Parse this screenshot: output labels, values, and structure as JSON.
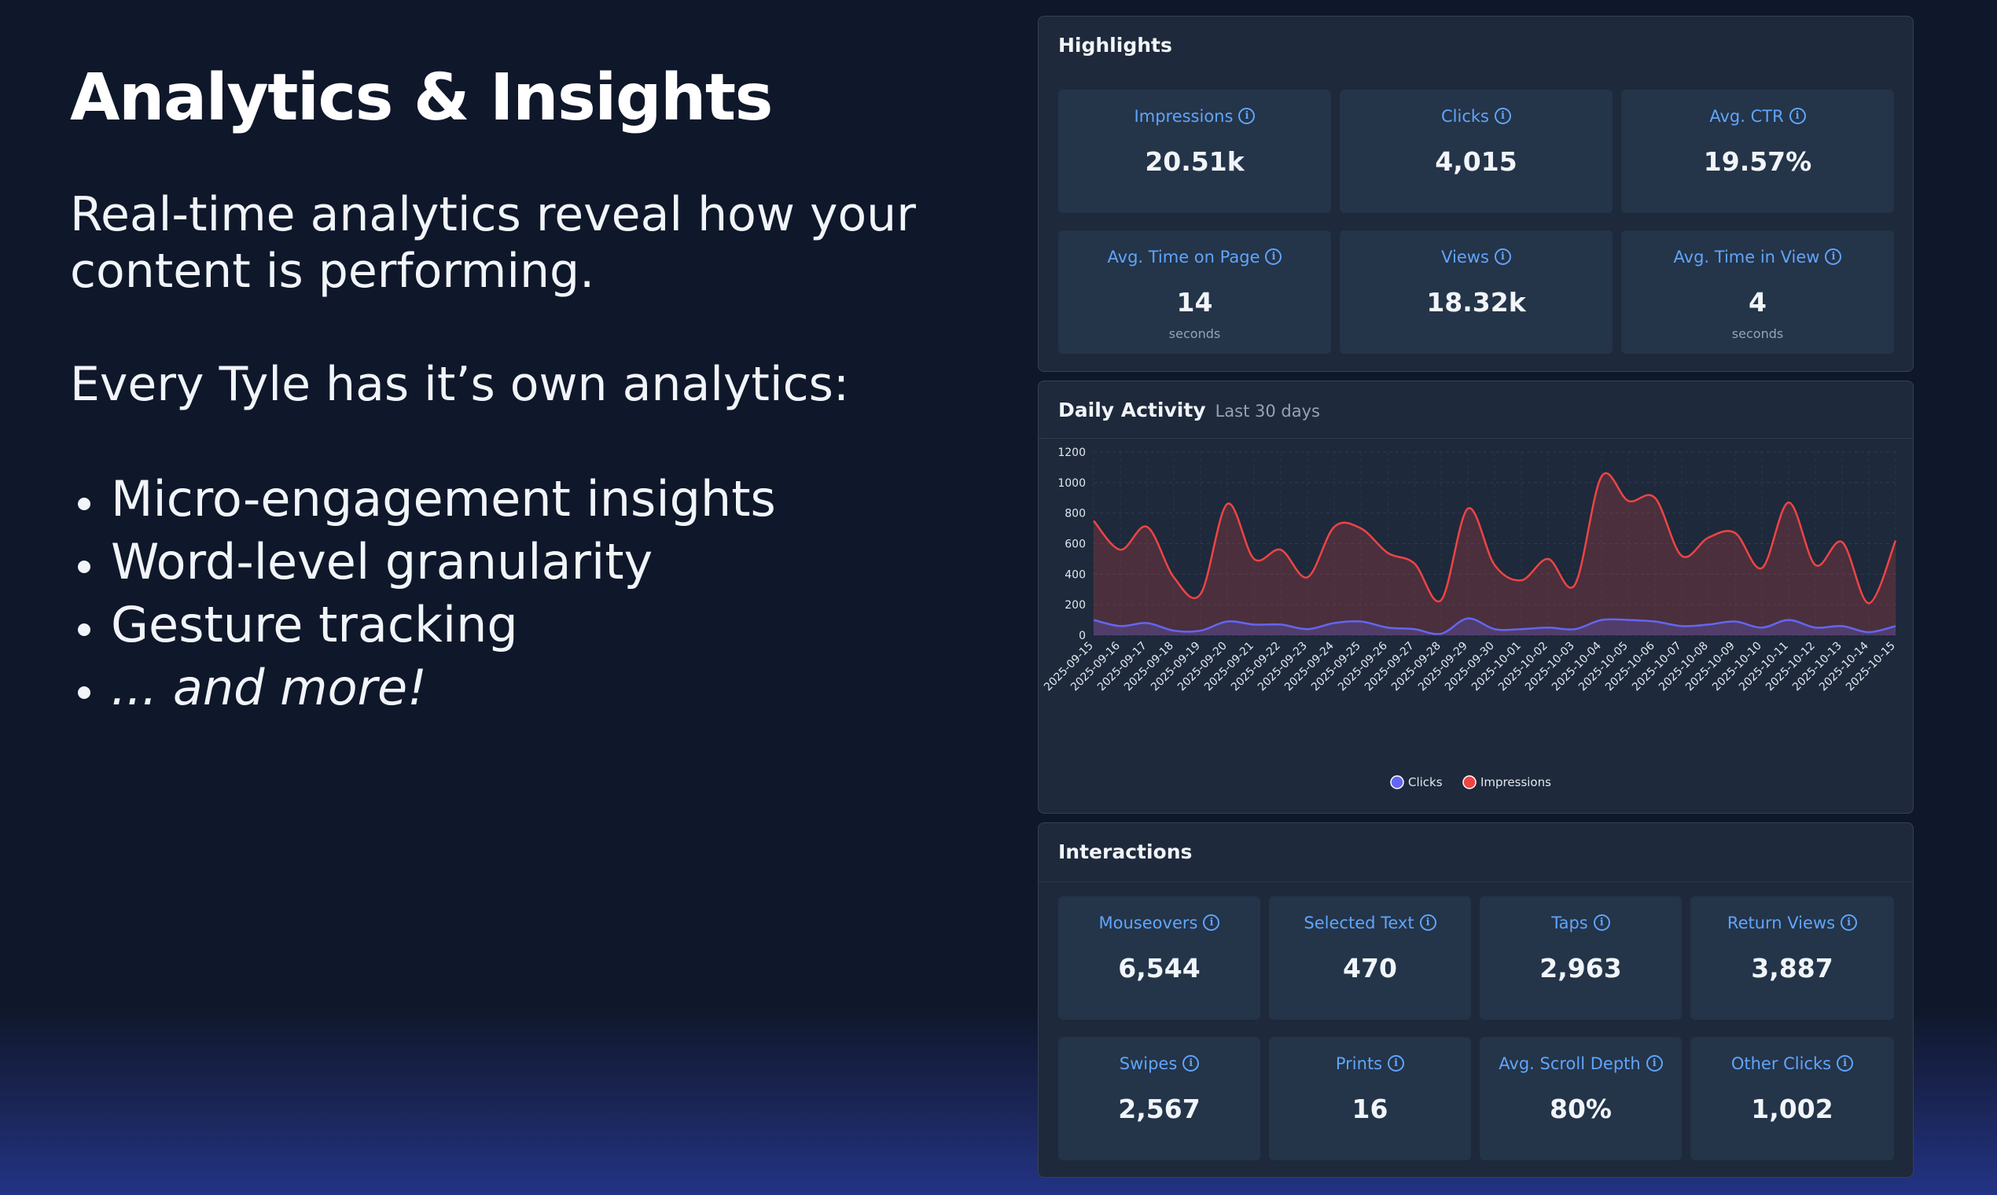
{
  "hero": {
    "title": "Analytics & Insights",
    "lead": "Real-time analytics reveal how your content is performing.",
    "lead2": "Every Tyle has it’s own analytics:",
    "bullets": [
      "Micro-engagement insights",
      "Word-level granularity",
      "Gesture tracking",
      "... and more!"
    ]
  },
  "highlights": {
    "title": "Highlights",
    "cards": [
      {
        "label": "Impressions",
        "value": "20.51k",
        "unit": ""
      },
      {
        "label": "Clicks",
        "value": "4,015",
        "unit": ""
      },
      {
        "label": "Avg. CTR",
        "value": "19.57%",
        "unit": ""
      },
      {
        "label": "Avg. Time on Page",
        "value": "14",
        "unit": "seconds"
      },
      {
        "label": "Views",
        "value": "18.32k",
        "unit": ""
      },
      {
        "label": "Avg. Time in View",
        "value": "4",
        "unit": "seconds"
      }
    ]
  },
  "daily": {
    "title": "Daily Activity",
    "subtitle": "Last 30 days"
  },
  "interactions": {
    "title": "Interactions",
    "cards": [
      {
        "label": "Mouseovers",
        "value": "6,544"
      },
      {
        "label": "Selected Text",
        "value": "470"
      },
      {
        "label": "Taps",
        "value": "2,963"
      },
      {
        "label": "Return Views",
        "value": "3,887"
      },
      {
        "label": "Swipes",
        "value": "2,567"
      },
      {
        "label": "Prints",
        "value": "16"
      },
      {
        "label": "Avg. Scroll Depth",
        "value": "80%"
      },
      {
        "label": "Other Clicks",
        "value": "1,002"
      }
    ]
  },
  "colors": {
    "impressions": "#ef4444",
    "clicks": "#6366f1",
    "label_blue": "#60a5fa"
  },
  "chart_data": {
    "type": "area",
    "title": "",
    "xlabel": "",
    "ylabel": "",
    "ylim": [
      0,
      1200
    ],
    "yticks": [
      0,
      200,
      400,
      600,
      800,
      1000,
      1200
    ],
    "grid": true,
    "legend": "bottom",
    "x": [
      "2025-09-15",
      "2025-09-16",
      "2025-09-17",
      "2025-09-18",
      "2025-09-19",
      "2025-09-20",
      "2025-09-21",
      "2025-09-22",
      "2025-09-23",
      "2025-09-24",
      "2025-09-25",
      "2025-09-26",
      "2025-09-27",
      "2025-09-28",
      "2025-09-29",
      "2025-09-30",
      "2025-10-01",
      "2025-10-02",
      "2025-10-03",
      "2025-10-04",
      "2025-10-05",
      "2025-10-06",
      "2025-10-07",
      "2025-10-08",
      "2025-10-09",
      "2025-10-10",
      "2025-10-11",
      "2025-10-12",
      "2025-10-13",
      "2025-10-14",
      "2025-10-15"
    ],
    "series": [
      {
        "name": "Clicks",
        "color": "#6366f1",
        "values": [
          100,
          60,
          80,
          30,
          30,
          90,
          70,
          70,
          40,
          80,
          90,
          50,
          40,
          10,
          110,
          40,
          40,
          50,
          40,
          100,
          100,
          90,
          60,
          70,
          90,
          50,
          100,
          50,
          60,
          20,
          60
        ]
      },
      {
        "name": "Impressions",
        "color": "#ef4444",
        "values": [
          750,
          560,
          710,
          380,
          270,
          860,
          500,
          560,
          380,
          710,
          700,
          540,
          470,
          230,
          830,
          460,
          360,
          500,
          330,
          1040,
          880,
          900,
          520,
          640,
          670,
          440,
          870,
          460,
          610,
          210,
          620
        ]
      }
    ]
  }
}
